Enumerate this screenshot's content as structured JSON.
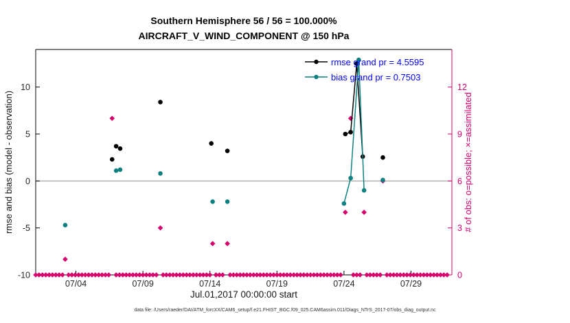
{
  "title": {
    "line1": "Southern Hemisphere 56 / 56 = 100.000%",
    "line2": "AIRCRAFT_V_WIND_COMPONENT @ 150 hPa"
  },
  "xlabel": "Jul.01,2017 00:00:00 start",
  "ylabel_left": "rmse and bias (model - observation)",
  "ylabel_right": "# of obs: o=possible; ×=assimilated",
  "legend": {
    "rmse": "rmse grand pr = 4.5595",
    "bias": "bias grand pr = 0.7503"
  },
  "footer": "data file: /Users/raeder/DAI/ATM_forcXX/CAM6_setup/f.e21.FHIST_BGC.f09_025.CAM6assim.011/Diags_NTrS_2017-07/obs_diag_output.nc",
  "colors": {
    "rmse": "#000000",
    "bias": "#0f8080",
    "obs": "#d5006d",
    "legend_text": "#0000ff",
    "zero_line": "#b0b0b0",
    "axis": "#000000",
    "tick_text": "#262626"
  },
  "chart_data": {
    "type": "line",
    "title": "Southern Hemisphere 56 / 56 = 100.000% — AIRCRAFT_V_WIND_COMPONENT @ 150 hPa",
    "x_axis": {
      "range": [
        1,
        32.05
      ],
      "ticks": [
        4,
        9,
        14,
        19,
        24,
        29
      ],
      "tick_labels": [
        "07/04",
        "07/09",
        "07/14",
        "07/19",
        "07/24",
        "07/29"
      ],
      "label": "Jul.01,2017 00:00:00 start"
    },
    "y_left": {
      "range": [
        -10,
        14
      ],
      "ticks": [
        -10,
        -5,
        0,
        5,
        10
      ],
      "tick_labels": [
        "-10",
        "-5",
        "0",
        "5",
        "10"
      ],
      "label": "rmse and bias (model - observation)"
    },
    "y_right": {
      "range": [
        0,
        14.4
      ],
      "ticks": [
        0,
        3,
        6,
        9,
        12
      ],
      "tick_labels": [
        "0",
        "3",
        "6",
        "9",
        "12"
      ],
      "label": "# of obs: o=possible; ×=assimilated"
    },
    "series": [
      {
        "name": "rmse",
        "grand_value": 4.5595,
        "points": [
          [
            6.7,
            2.3
          ],
          [
            7.0,
            3.7
          ],
          [
            7.3,
            3.45
          ],
          [
            10.3,
            8.4
          ],
          [
            14.1,
            4.0
          ],
          [
            15.3,
            3.2
          ],
          [
            24.1,
            5.0
          ],
          [
            24.5,
            5.2
          ],
          [
            24.95,
            12.5
          ],
          [
            25.4,
            2.6
          ],
          [
            26.9,
            2.5
          ]
        ],
        "segments": [
          [
            [
              24.1,
              5.0
            ],
            [
              24.5,
              5.2
            ],
            [
              24.95,
              12.5
            ],
            [
              25.4,
              2.6
            ]
          ]
        ]
      },
      {
        "name": "bias",
        "grand_value": 0.7503,
        "points": [
          [
            3.2,
            -4.7
          ],
          [
            7.0,
            1.1
          ],
          [
            7.3,
            1.2
          ],
          [
            10.3,
            0.8
          ],
          [
            14.2,
            -2.2
          ],
          [
            15.3,
            -2.2
          ],
          [
            24.0,
            -2.4
          ],
          [
            24.5,
            0.3
          ],
          [
            25.1,
            12.9
          ],
          [
            25.5,
            -1.0
          ],
          [
            26.9,
            0.1
          ]
        ],
        "segments": [
          [
            [
              24.0,
              -2.4
            ],
            [
              24.5,
              0.3
            ],
            [
              25.1,
              12.9
            ],
            [
              25.5,
              -1.0
            ]
          ]
        ]
      }
    ],
    "obs_counts": {
      "nonzero": [
        [
          3.2,
          1
        ],
        [
          6.7,
          10
        ],
        [
          10.3,
          3
        ],
        [
          14.2,
          2
        ],
        [
          15.3,
          2
        ],
        [
          24.1,
          4
        ],
        [
          24.5,
          10
        ],
        [
          25.5,
          4
        ],
        [
          26.9,
          6
        ]
      ],
      "zero_runs": [
        [
          1.0,
          3.0
        ],
        [
          3.45,
          6.5
        ],
        [
          7.0,
          10.05
        ],
        [
          10.5,
          14.0
        ],
        [
          14.45,
          15.05
        ],
        [
          15.5,
          23.8
        ],
        [
          24.7,
          25.3
        ],
        [
          25.7,
          26.7
        ],
        [
          27.2,
          31.8
        ]
      ],
      "zero_step": 0.25
    }
  }
}
